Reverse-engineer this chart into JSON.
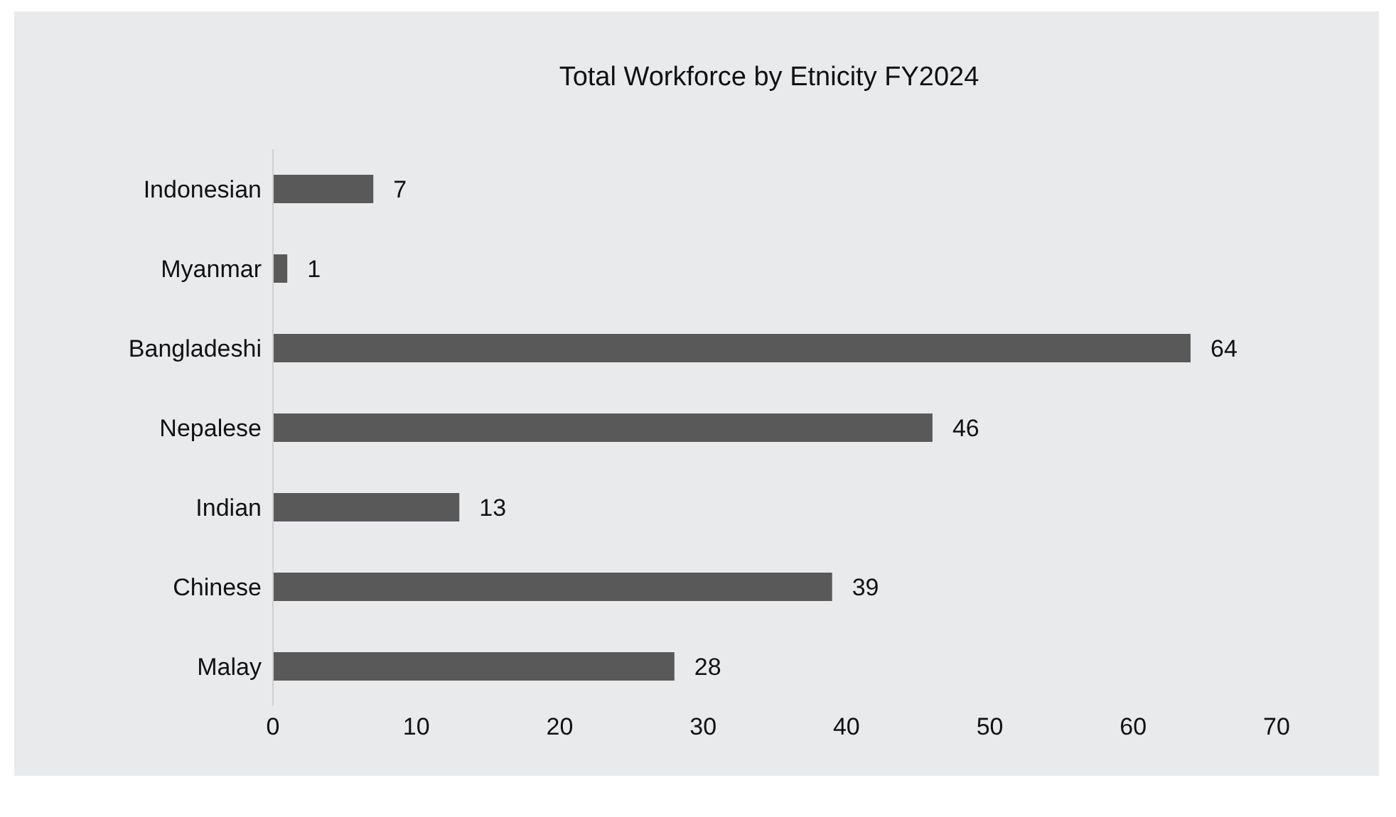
{
  "chart_data": {
    "type": "bar",
    "orientation": "horizontal",
    "title": "Total Workforce by Etnicity FY2024",
    "categories": [
      "Indonesian",
      "Myanmar",
      "Bangladeshi",
      "Nepalese",
      "Indian",
      "Chinese",
      "Malay"
    ],
    "values": [
      7,
      1,
      64,
      46,
      13,
      39,
      28
    ],
    "color": "#595959",
    "xlim": [
      0,
      70
    ],
    "xticks": [
      0,
      10,
      20,
      30,
      40,
      50,
      60,
      70
    ],
    "grid": false,
    "data_labels": true
  }
}
